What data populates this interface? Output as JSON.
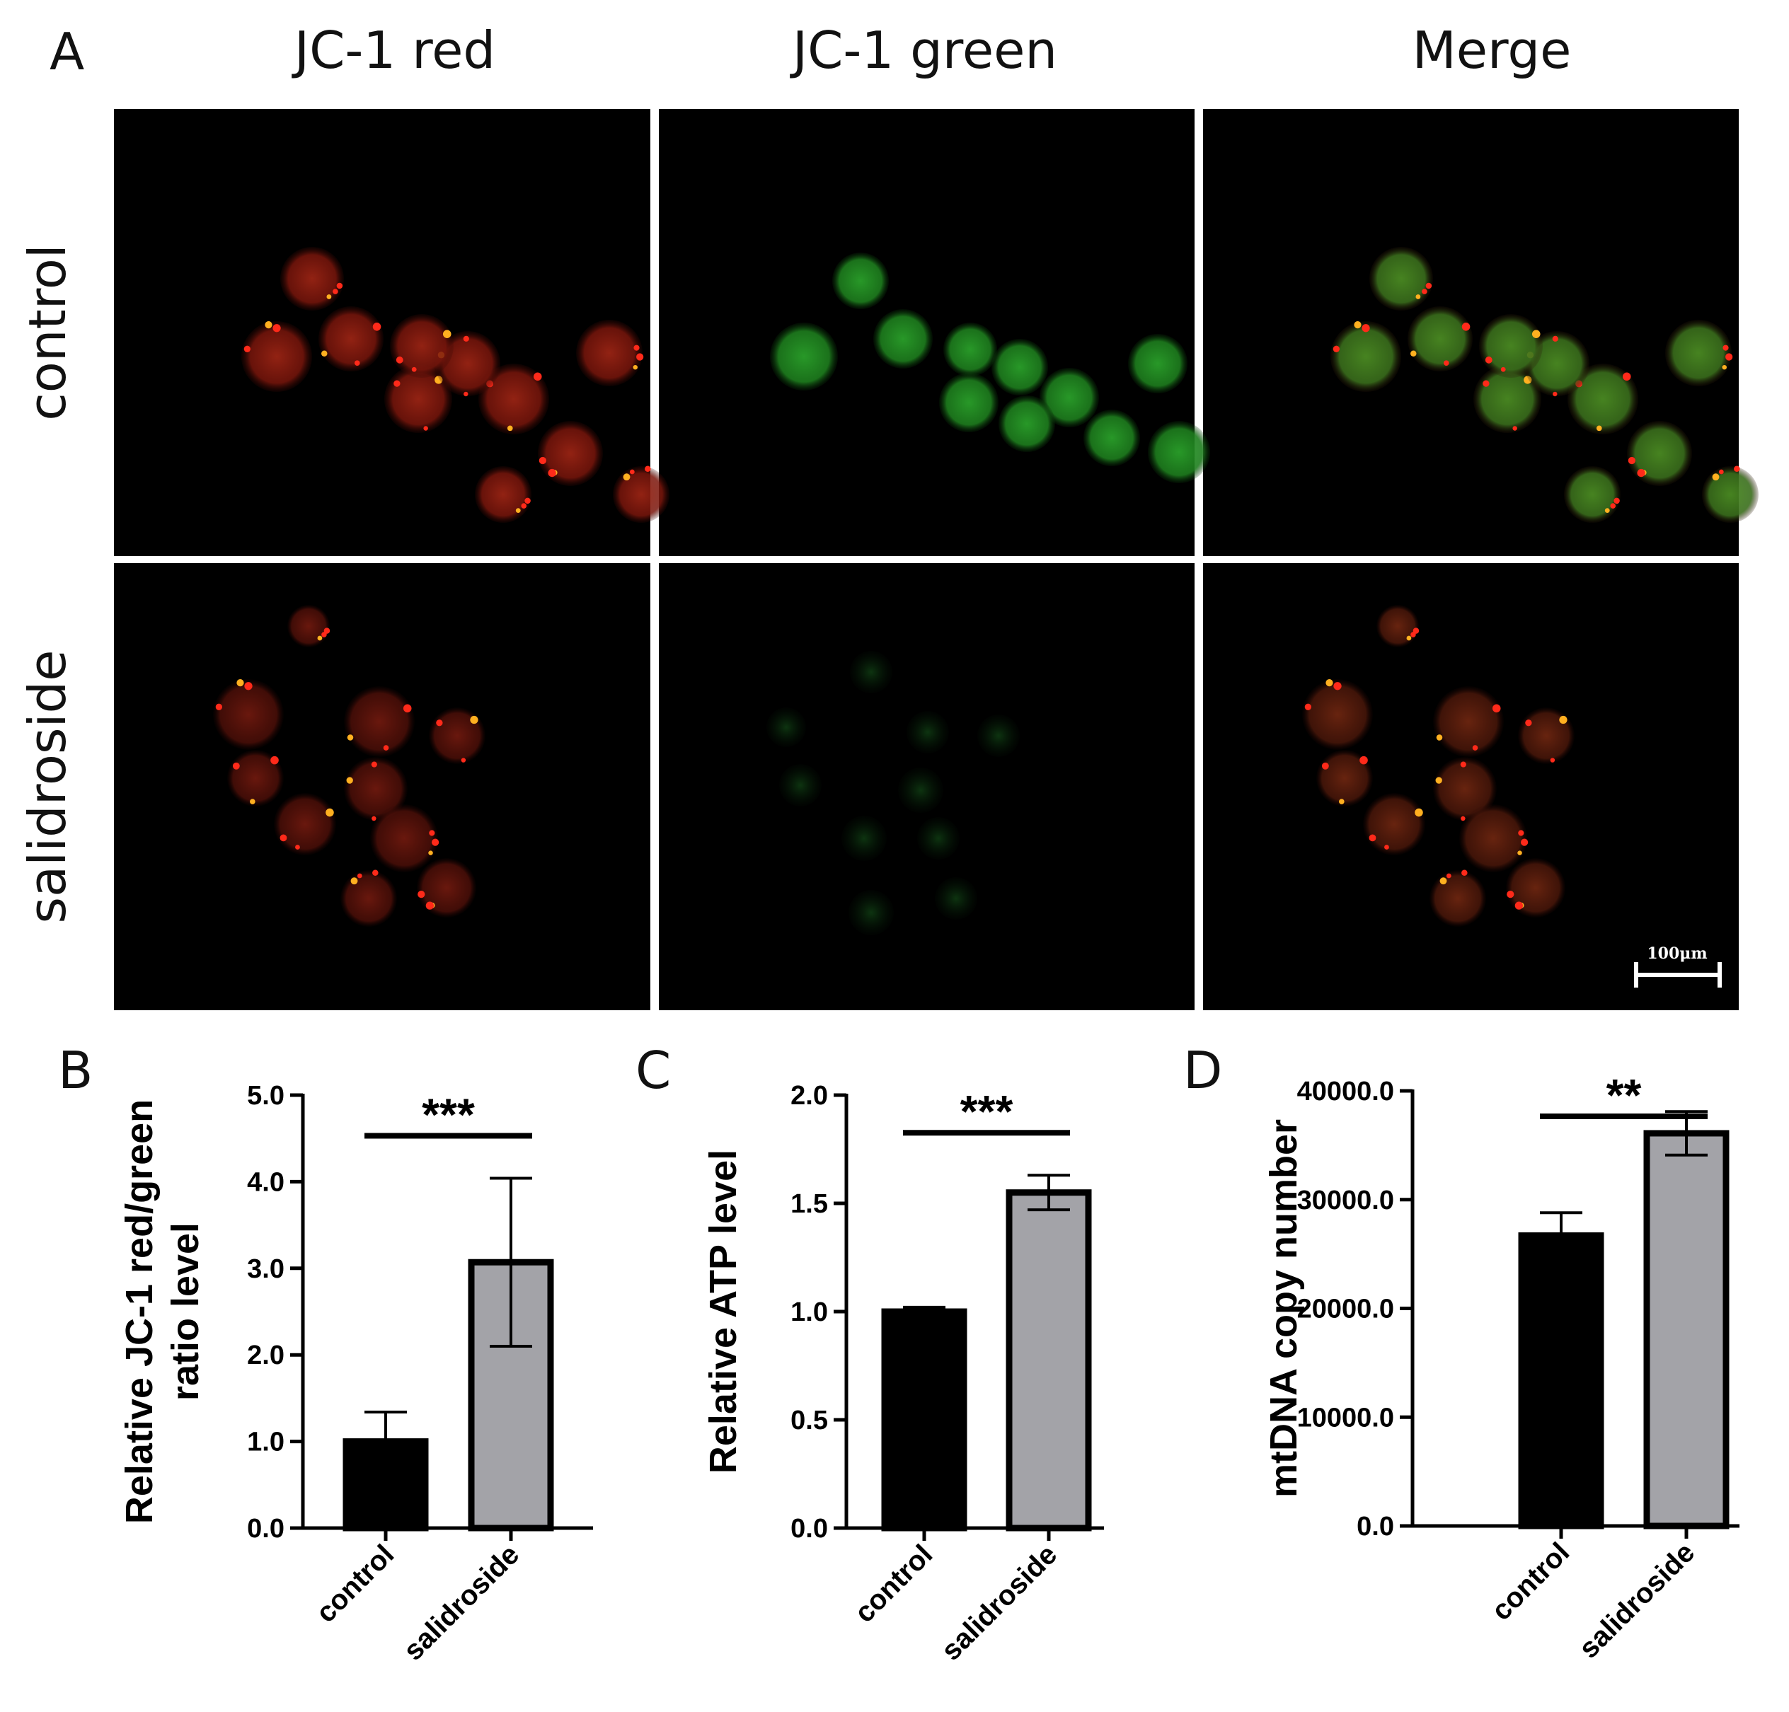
{
  "panel_a": {
    "letter": "A",
    "columns": [
      "JC-1 red",
      "JC-1 green",
      "Merge"
    ],
    "rows": [
      "control",
      "salidroside"
    ],
    "scale_bar": "100μm"
  },
  "panels": {
    "b": {
      "letter": "B"
    },
    "c": {
      "letter": "C"
    },
    "d": {
      "letter": "D"
    }
  },
  "colors": {
    "control_bar": "#000000",
    "salidroside_bar": "#a3a3a8",
    "micrograph_bg": "#000000",
    "red_channel": "#8a1a10",
    "green_channel": "#1f8a1f"
  },
  "chart_data": [
    {
      "type": "bar",
      "categories": [
        "control",
        "salidroside"
      ],
      "values": [
        1.0,
        3.07
      ],
      "error": [
        0.34,
        0.97
      ],
      "ylabel": "Relative JC-1 red/green ratio level",
      "ylim": [
        0,
        5
      ],
      "yticks": [
        "0.0",
        "1.0",
        "2.0",
        "3.0",
        "4.0",
        "5.0"
      ],
      "significance": "***"
    },
    {
      "type": "bar",
      "categories": [
        "control",
        "salidroside"
      ],
      "values": [
        1.0,
        1.55
      ],
      "error": [
        0.02,
        0.08
      ],
      "ylabel": "Relative ATP level",
      "ylim": [
        0,
        2
      ],
      "yticks": [
        "0.0",
        "0.5",
        "1.0",
        "1.5",
        "2.0"
      ],
      "significance": "***"
    },
    {
      "type": "bar",
      "categories": [
        "control",
        "salidroside"
      ],
      "values": [
        26700,
        36100
      ],
      "error": [
        2100,
        2000
      ],
      "ylabel": "mtDNA copy number",
      "ylim": [
        0,
        40000
      ],
      "yticks": [
        "0.0",
        "10000.0",
        "20000.0",
        "30000.0",
        "40000.0"
      ],
      "significance": "**"
    }
  ]
}
